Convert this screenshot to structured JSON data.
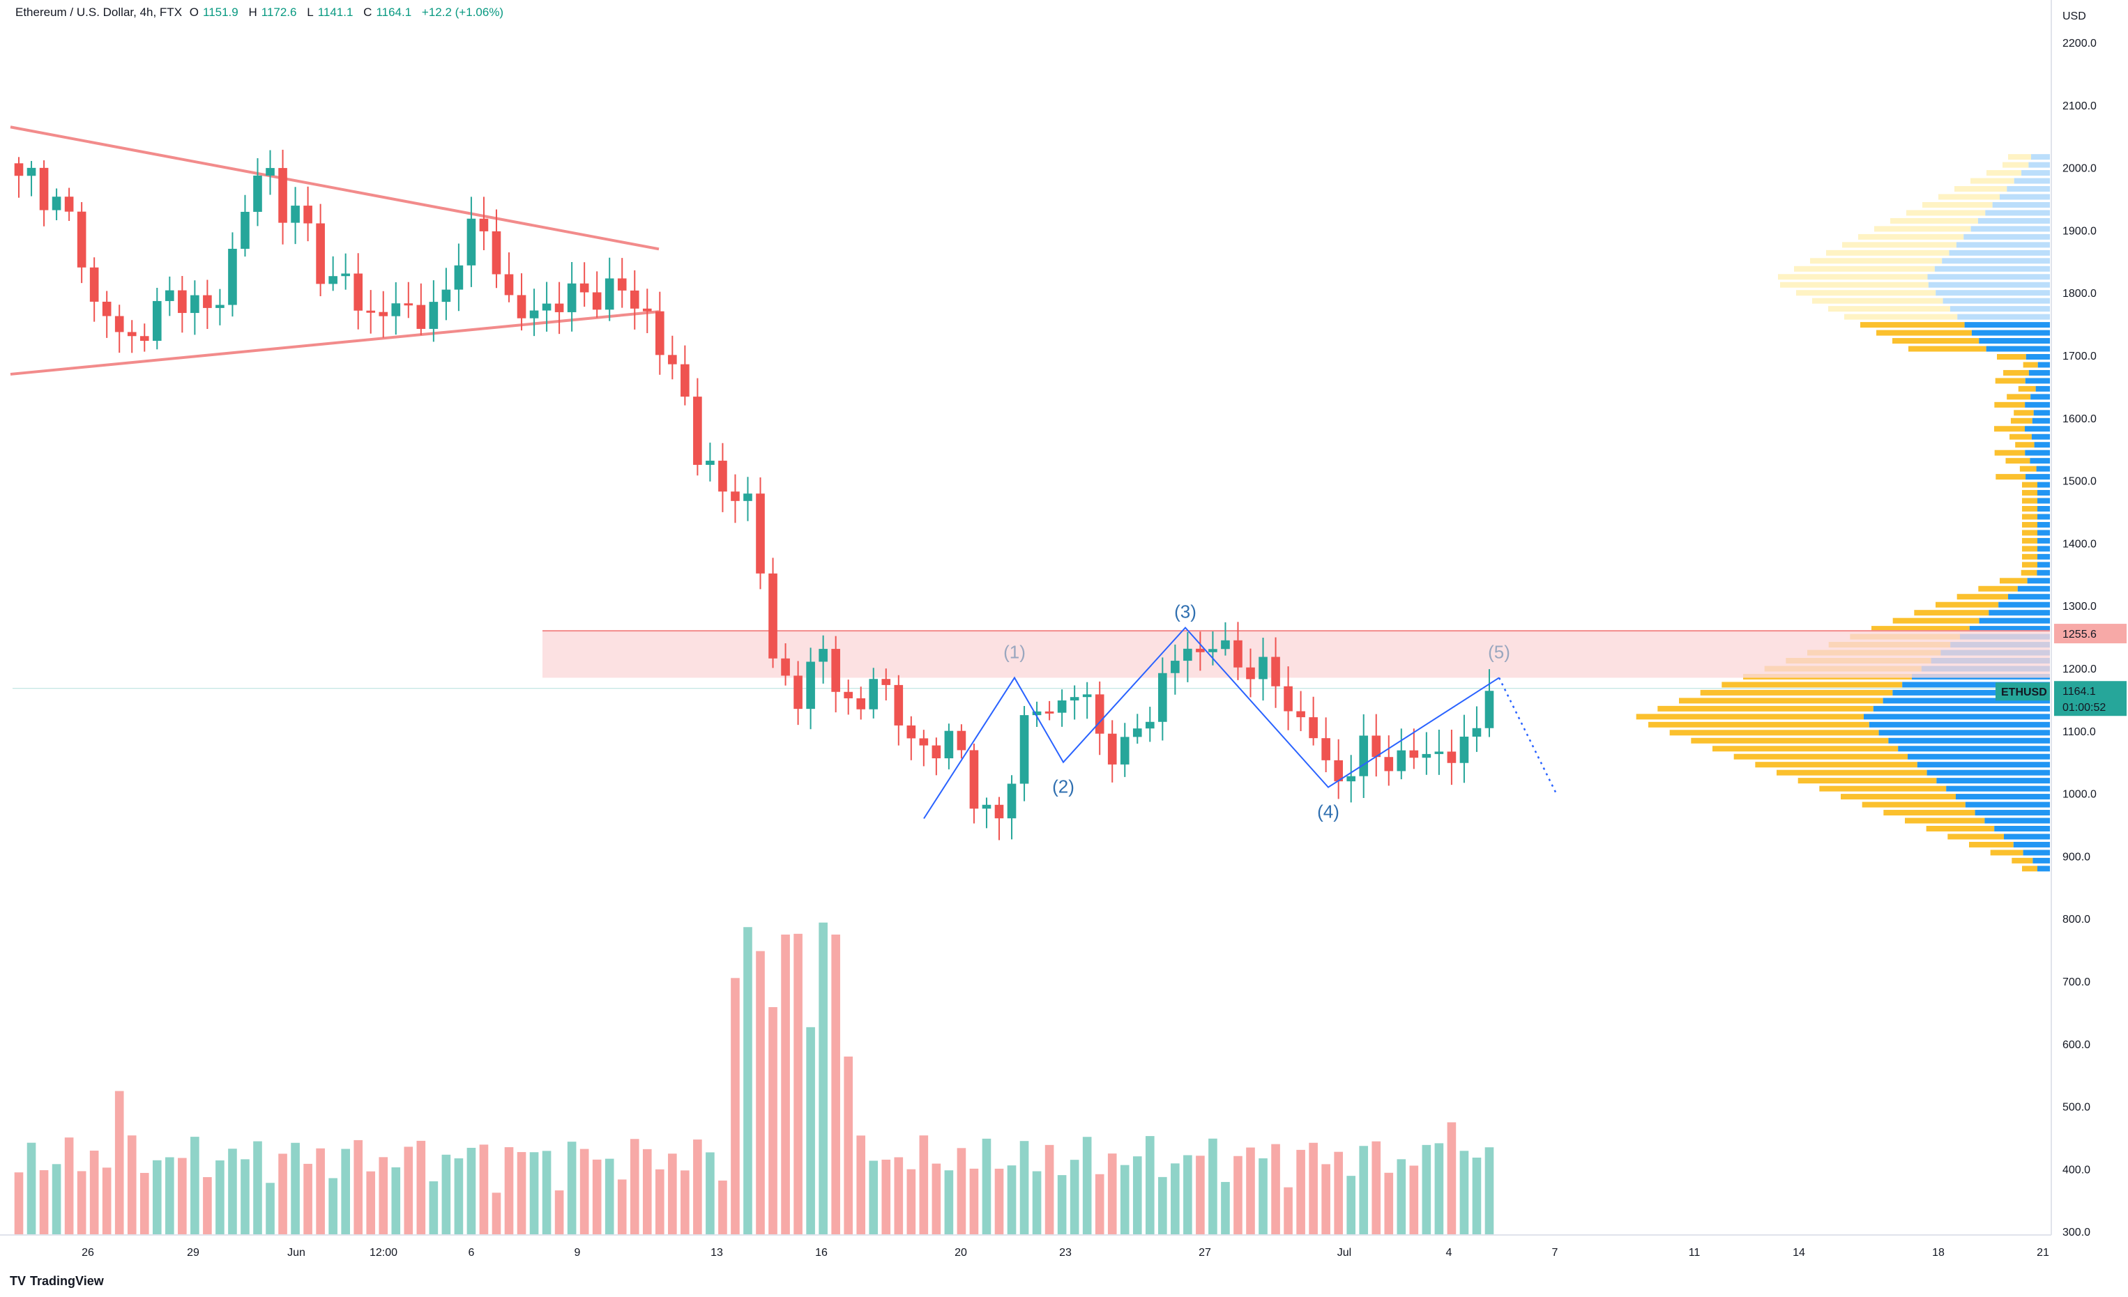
{
  "header": {
    "symbol": "Ethereum / U.S. Dollar, 4h, FTX",
    "o_label": "O",
    "o": "1151.9",
    "h_label": "H",
    "h": "1172.6",
    "l_label": "L",
    "l": "1141.1",
    "c_label": "C",
    "c": "1164.1",
    "change": "+12.2 (+1.06%)"
  },
  "brand": {
    "logo": "TV",
    "name": "TradingView"
  },
  "colors": {
    "up": "#26a69a",
    "down": "#ef5350",
    "vol_up": "#8fd3c8",
    "vol_down": "#f7a9a7",
    "trendline": "#f28b8b",
    "zone_fill": "#fbd9db",
    "zone_line": "#f28b8b",
    "wave_line": "#2962ff",
    "wave_label": "#2f6fb0",
    "wave_label_muted": "#9aa7bf",
    "vp_up": "#2196f3",
    "vp_down": "#fbc02d",
    "vp_up_light": "#bbdefb",
    "vp_down_light": "#fff3c4",
    "price_tag": "#26a69a",
    "zone_tag": "#f7a9a7"
  },
  "chart_data": {
    "type": "candlestick",
    "title": "Ethereum / U.S. Dollar, 4h, FTX",
    "currency": "USD",
    "y_ticks": [
      "2200.0",
      "2100.0",
      "2000.0",
      "1900.0",
      "1800.0",
      "1700.0",
      "1600.0",
      "1500.0",
      "1400.0",
      "1300.0",
      "1200.0",
      "1100.0",
      "1000.0",
      "900.0",
      "800.0",
      "700.0",
      "600.0",
      "500.0",
      "400.0",
      "300.0"
    ],
    "x_ticks": [
      "26",
      "29",
      "Jun",
      "12:00",
      "6",
      "9",
      "13",
      "16",
      "20",
      "23",
      "27",
      "Jul",
      "4",
      "7",
      "11",
      "14",
      "18",
      "21"
    ],
    "price_range": [
      870,
      2200
    ],
    "candle_path": [
      1975,
      1990,
      1950,
      1930,
      1895,
      1780,
      1760,
      1735,
      1720,
      1760,
      1790,
      1800,
      1780,
      1760,
      1820,
      1900,
      1980,
      2000,
      1930,
      1920,
      1890,
      1800,
      1830,
      1790,
      1760,
      1770,
      1780,
      1770,
      1760,
      1790,
      1880,
      1910,
      1880,
      1800,
      1770,
      1760,
      1780,
      1800,
      1790,
      1795,
      1810,
      1800,
      1780,
      1760,
      1680,
      1660,
      1560,
      1510,
      1470,
      1500,
      1440,
      1230,
      1190,
      1150,
      1200,
      1240,
      1150,
      1100,
      1210,
      1160,
      1100,
      1080,
      1070,
      1080,
      1075,
      1000,
      950,
      960,
      1100,
      1140,
      1120,
      1150,
      1180,
      1110,
      1080,
      1060,
      1100,
      1130,
      1200,
      1230,
      1210,
      1260,
      1220,
      1200,
      1210,
      1190,
      1150,
      1120,
      1100,
      1030,
      1020,
      1070,
      1060,
      1060,
      1050,
      1060,
      1070,
      1060,
      1060,
      1100,
      1164.1
    ],
    "candle_count": 118,
    "current_price": "1164.1",
    "countdown": "01:00:52",
    "symbol_tag": "ETHUSD",
    "zone": {
      "top": 1260,
      "bottom": 1185,
      "label": "1255.6"
    },
    "triangle": {
      "upper": [
        [
          0,
          2065
        ],
        [
          1,
          1870
        ]
      ],
      "lower": [
        [
          0,
          1670
        ],
        [
          1,
          1770
        ]
      ]
    },
    "elliott_waves": [
      {
        "label": "(1)",
        "price": 1185
      },
      {
        "label": "(2)",
        "price": 1050
      },
      {
        "label": "(3)",
        "price": 1265
      },
      {
        "label": "(4)",
        "price": 1010
      },
      {
        "label": "(5)",
        "price": 1185
      }
    ],
    "projection": [
      1185,
      1000
    ],
    "volume": {
      "axis_max": 800,
      "axis_min": 300
    }
  }
}
